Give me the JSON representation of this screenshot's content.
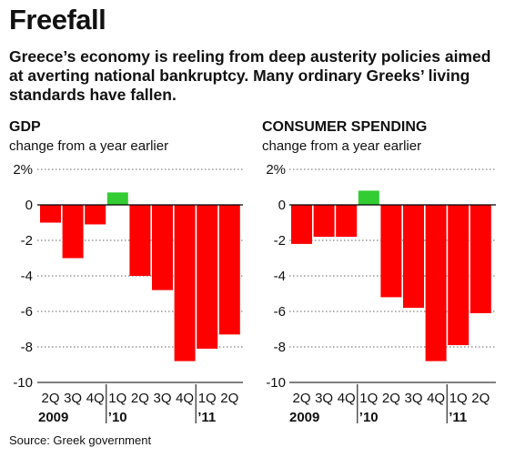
{
  "header": {
    "title": "Freefall",
    "subtitle": "Greece’s economy is reeling from deep austerity policies aimed at averting national bankruptcy. Many ordinary Greeks’ living standards have fallen."
  },
  "colors": {
    "negative": "#ff0000",
    "positive": "#33cc33",
    "gridline": "#666666",
    "text": "#111111"
  },
  "chart_data": [
    {
      "type": "bar",
      "title": "GDP",
      "subtitle": "change from a year earlier",
      "categories": [
        "2Q",
        "3Q",
        "4Q",
        "1Q",
        "2Q",
        "3Q",
        "4Q",
        "1Q",
        "2Q"
      ],
      "year_labels": [
        {
          "label": "2009",
          "category_index": 0
        },
        {
          "label": "’10",
          "category_index": 3
        },
        {
          "label": "’11",
          "category_index": 7
        }
      ],
      "values": [
        -1.0,
        -3.0,
        -1.1,
        0.7,
        -4.0,
        -4.8,
        -8.8,
        -8.1,
        -7.3
      ],
      "ylim": [
        -10,
        2
      ],
      "yticks": [
        2,
        0,
        -2,
        -4,
        -6,
        -8,
        -10
      ],
      "ytick_labels": [
        "2%",
        "0",
        "-2",
        "-4",
        "-6",
        "-8",
        "-10"
      ],
      "grid": true
    },
    {
      "type": "bar",
      "title": "CONSUMER SPENDING",
      "subtitle": "change from a year earlier",
      "categories": [
        "2Q",
        "3Q",
        "4Q",
        "1Q",
        "2Q",
        "3Q",
        "4Q",
        "1Q",
        "2Q"
      ],
      "year_labels": [
        {
          "label": "2009",
          "category_index": 0
        },
        {
          "label": "’10",
          "category_index": 3
        },
        {
          "label": "’11",
          "category_index": 7
        }
      ],
      "values": [
        -2.2,
        -1.8,
        -1.8,
        0.8,
        -5.2,
        -5.8,
        -8.8,
        -7.9,
        -6.1
      ],
      "ylim": [
        -10,
        2
      ],
      "yticks": [
        2,
        0,
        -2,
        -4,
        -6,
        -8,
        -10
      ],
      "ytick_labels": [
        "2%",
        "0",
        "-2",
        "-4",
        "-6",
        "-8",
        "-10"
      ],
      "grid": true
    }
  ],
  "footer": {
    "source": "Source: Greek government"
  }
}
